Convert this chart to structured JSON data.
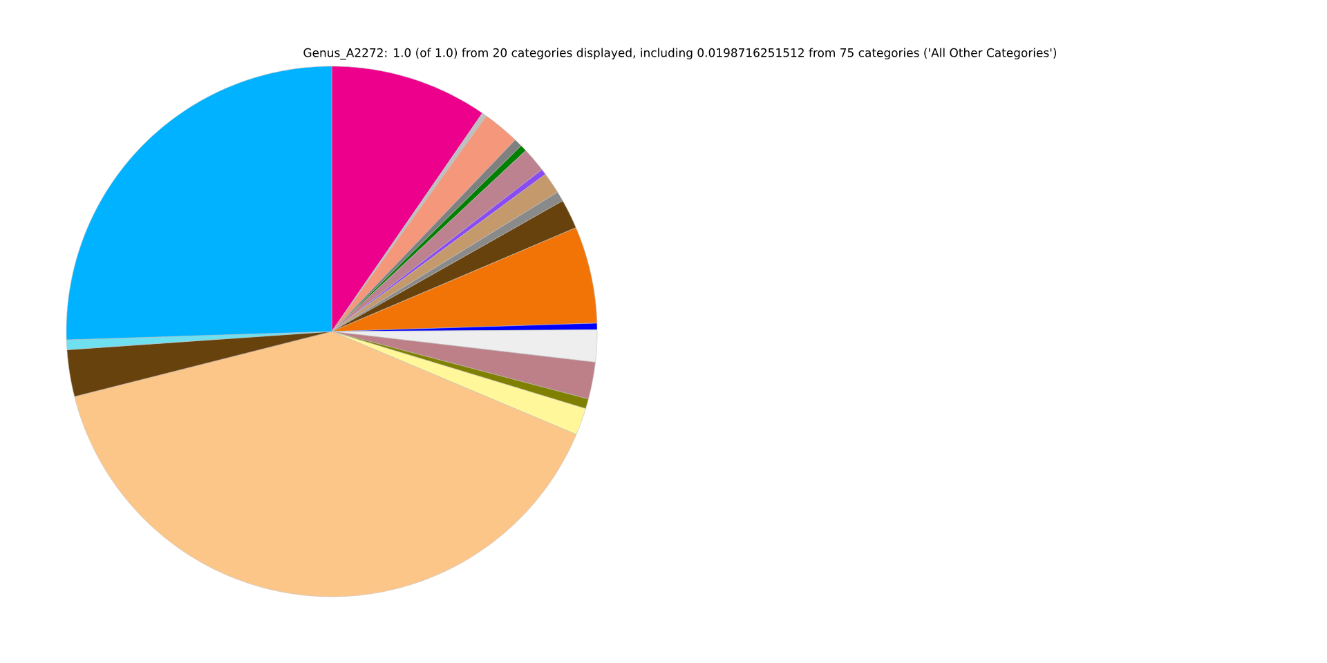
{
  "chart_data": {
    "type": "pie",
    "title": "Genus_A2272: 1.0 (of 1.0) from 20 categories displayed, including 0.0198716251512 from 75 categories ('All Other Categories')",
    "categories": [
      null,
      null,
      null,
      null,
      null,
      null,
      null,
      null,
      null,
      null,
      null,
      null,
      null,
      null,
      null,
      null,
      null,
      null,
      null,
      null
    ],
    "values": [
      9.6,
      0.3,
      2.25,
      0.5,
      0.4,
      1.5,
      0.35,
      1.3,
      0.6,
      1.8,
      5.9,
      0.4,
      1.95,
      2.25,
      0.6,
      1.65,
      39.7,
      2.85,
      0.6,
      25.5
    ],
    "colors": [
      "#ec008c",
      "#c0c0c0",
      "#f4977a",
      "#808080",
      "#008000",
      "#bc8290",
      "#8b4bf2",
      "#c49a6c",
      "#8a8a8a",
      "#68420c",
      "#f37406",
      "#0000ff",
      "#eeeeee",
      "#bd8089",
      "#808000",
      "#fff799",
      "#fdc689",
      "#68420c",
      "#6ee0f0",
      "#00b2ff"
    ]
  }
}
